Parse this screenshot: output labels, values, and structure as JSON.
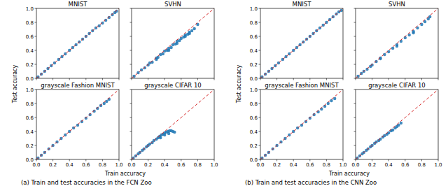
{
  "subfigures": [
    {
      "caption": "(a) Train and test accuracies in the FCN Zoo",
      "x_label": "Train accuracy",
      "y_label": "Test accuracy"
    },
    {
      "caption": "(b) Train and test accuracies in the CNN Zoo",
      "x_label": "Train accuracy",
      "y_label": "Test accuracy"
    }
  ],
  "chart_data": [
    {
      "type": "scatter",
      "title": "MNIST",
      "tick_labels": "y",
      "xlim": [
        0,
        1
      ],
      "ylim": [
        0,
        1
      ],
      "xticks": [
        {
          "value": 0,
          "label": "0.0"
        },
        0.2,
        0.4,
        0.6,
        0.8,
        {
          "value": 1,
          "label": "1.0"
        }
      ],
      "yticks": [
        {
          "value": 0,
          "label": "0.0"
        },
        0.2,
        0.4,
        0.6,
        0.8,
        {
          "value": 1,
          "label": "1.0"
        }
      ],
      "series": [
        {
          "type": "scatter",
          "color": "#1f77b4",
          "marker": "circle",
          "x": [
            0.02,
            0.06,
            0.1,
            0.14,
            0.18,
            0.22,
            0.27,
            0.31,
            0.35,
            0.4,
            0.44,
            0.48,
            0.52,
            0.56,
            0.6,
            0.64,
            0.68,
            0.72,
            0.76,
            0.8,
            0.84,
            0.88,
            0.92,
            0.95,
            0.97
          ],
          "y": [
            0.02,
            0.06,
            0.1,
            0.14,
            0.18,
            0.22,
            0.27,
            0.31,
            0.35,
            0.4,
            0.44,
            0.48,
            0.52,
            0.56,
            0.6,
            0.64,
            0.68,
            0.72,
            0.75,
            0.79,
            0.83,
            0.87,
            0.91,
            0.94,
            0.96
          ]
        },
        {
          "type": "line",
          "color": "#d62728",
          "line_style": "dashed",
          "x": [
            0,
            1
          ],
          "y": [
            0,
            1
          ]
        }
      ]
    },
    {
      "type": "scatter",
      "title": "SVHN",
      "tick_labels": false,
      "xlim": [
        0,
        1
      ],
      "ylim": [
        0,
        1
      ],
      "xticks": [
        {
          "value": 0,
          "label": "0.0"
        },
        0.2,
        0.4,
        0.6,
        0.8,
        {
          "value": 1,
          "label": "1.0"
        }
      ],
      "yticks": [
        {
          "value": 0,
          "label": "0.0"
        },
        0.2,
        0.4,
        0.6,
        0.8,
        {
          "value": 1,
          "label": "1.0"
        }
      ],
      "series": [
        {
          "type": "scatter",
          "color": "#1f77b4",
          "marker": "circle",
          "x": [
            0.03,
            0.08,
            0.12,
            0.16,
            0.2,
            0.22,
            0.25,
            0.3,
            0.32,
            0.35,
            0.38,
            0.4,
            0.43,
            0.45,
            0.48,
            0.5,
            0.53,
            0.55,
            0.58,
            0.6,
            0.63,
            0.65,
            0.68,
            0.7,
            0.73,
            0.76,
            0.8,
            0.3,
            0.45,
            0.55,
            0.65,
            0.7
          ],
          "y": [
            0.03,
            0.08,
            0.12,
            0.15,
            0.19,
            0.22,
            0.23,
            0.29,
            0.3,
            0.34,
            0.35,
            0.39,
            0.4,
            0.43,
            0.44,
            0.48,
            0.49,
            0.53,
            0.54,
            0.57,
            0.59,
            0.62,
            0.63,
            0.66,
            0.68,
            0.71,
            0.77,
            0.27,
            0.4,
            0.5,
            0.6,
            0.64
          ]
        },
        {
          "type": "line",
          "color": "#d62728",
          "line_style": "dashed",
          "x": [
            0,
            1
          ],
          "y": [
            0,
            1
          ]
        }
      ]
    },
    {
      "type": "scatter",
      "title": "grayscale Fashion MNIST",
      "xlim": [
        0,
        1
      ],
      "ylim": [
        0,
        1
      ],
      "xticks": [
        {
          "value": 0,
          "label": "0.0"
        },
        0.2,
        0.4,
        0.6,
        0.8,
        {
          "value": 1,
          "label": "1.0"
        }
      ],
      "yticks": [
        {
          "value": 0,
          "label": "0.0"
        },
        0.2,
        0.4,
        0.6,
        0.8,
        {
          "value": 1,
          "label": "1.0"
        }
      ],
      "series": [
        {
          "type": "scatter",
          "color": "#1f77b4",
          "marker": "circle",
          "x": [
            0.02,
            0.06,
            0.1,
            0.15,
            0.2,
            0.25,
            0.3,
            0.35,
            0.4,
            0.45,
            0.5,
            0.55,
            0.6,
            0.65,
            0.7,
            0.74,
            0.78,
            0.82,
            0.85,
            0.88
          ],
          "y": [
            0.02,
            0.06,
            0.1,
            0.15,
            0.2,
            0.25,
            0.3,
            0.35,
            0.4,
            0.45,
            0.49,
            0.54,
            0.59,
            0.64,
            0.69,
            0.73,
            0.77,
            0.8,
            0.83,
            0.86
          ]
        },
        {
          "type": "line",
          "color": "#d62728",
          "line_style": "dashed",
          "x": [
            0,
            1
          ],
          "y": [
            0,
            1
          ]
        }
      ]
    },
    {
      "type": "scatter",
      "title": "grayscale CIFAR 10",
      "tick_labels": "x",
      "xlim": [
        0,
        1
      ],
      "ylim": [
        0,
        1
      ],
      "xticks": [
        {
          "value": 0,
          "label": "0.0"
        },
        0.2,
        0.4,
        0.6,
        0.8,
        {
          "value": 1,
          "label": "1.0"
        }
      ],
      "yticks": [
        {
          "value": 0,
          "label": "0.0"
        },
        0.2,
        0.4,
        0.6,
        0.8,
        {
          "value": 1,
          "label": "1.0"
        }
      ],
      "series": [
        {
          "type": "scatter",
          "color": "#1f77b4",
          "marker": "circle",
          "x": [
            0.02,
            0.05,
            0.08,
            0.1,
            0.13,
            0.15,
            0.18,
            0.2,
            0.22,
            0.25,
            0.27,
            0.3,
            0.32,
            0.34,
            0.36,
            0.38,
            0.4,
            0.42,
            0.44,
            0.46,
            0.48,
            0.5,
            0.52,
            0.35,
            0.4,
            0.45
          ],
          "y": [
            0.02,
            0.05,
            0.08,
            0.1,
            0.13,
            0.15,
            0.18,
            0.2,
            0.22,
            0.24,
            0.27,
            0.29,
            0.31,
            0.33,
            0.35,
            0.36,
            0.38,
            0.39,
            0.4,
            0.41,
            0.41,
            0.4,
            0.39,
            0.31,
            0.35,
            0.37
          ]
        },
        {
          "type": "line",
          "color": "#d62728",
          "line_style": "dashed",
          "x": [
            0,
            1
          ],
          "y": [
            0,
            1
          ]
        }
      ]
    },
    {
      "type": "scatter",
      "title": "MNIST",
      "tick_labels": "y",
      "xlim": [
        0,
        1
      ],
      "ylim": [
        0,
        1
      ],
      "xticks": [
        {
          "value": 0,
          "label": "0.0"
        },
        0.2,
        0.4,
        0.6,
        0.8,
        {
          "value": 1,
          "label": "1.0"
        }
      ],
      "yticks": [
        {
          "value": 0,
          "label": "0.0"
        },
        0.2,
        0.4,
        0.6,
        0.8,
        {
          "value": 1,
          "label": "1.0"
        }
      ],
      "series": [
        {
          "type": "scatter",
          "color": "#1f77b4",
          "marker": "circle",
          "x": [
            0.02,
            0.06,
            0.1,
            0.14,
            0.18,
            0.22,
            0.27,
            0.31,
            0.35,
            0.4,
            0.44,
            0.48,
            0.52,
            0.56,
            0.6,
            0.64,
            0.68,
            0.72,
            0.76,
            0.8,
            0.84,
            0.88,
            0.92,
            0.95,
            0.98
          ],
          "y": [
            0.02,
            0.06,
            0.1,
            0.14,
            0.18,
            0.22,
            0.27,
            0.31,
            0.35,
            0.4,
            0.44,
            0.48,
            0.52,
            0.56,
            0.6,
            0.64,
            0.68,
            0.72,
            0.76,
            0.8,
            0.84,
            0.88,
            0.92,
            0.95,
            0.97
          ]
        },
        {
          "type": "line",
          "color": "#d62728",
          "line_style": "dashed",
          "x": [
            0,
            1
          ],
          "y": [
            0,
            1
          ]
        }
      ]
    },
    {
      "type": "scatter",
      "title": "SVHN",
      "tick_labels": false,
      "xlim": [
        0,
        1
      ],
      "ylim": [
        0,
        1
      ],
      "xticks": [
        {
          "value": 0,
          "label": "0.0"
        },
        0.2,
        0.4,
        0.6,
        0.8,
        {
          "value": 1,
          "label": "1.0"
        }
      ],
      "yticks": [
        {
          "value": 0,
          "label": "0.0"
        },
        0.2,
        0.4,
        0.6,
        0.8,
        {
          "value": 1,
          "label": "1.0"
        }
      ],
      "series": [
        {
          "type": "scatter",
          "color": "#1f77b4",
          "marker": "circle",
          "x": [
            0.03,
            0.07,
            0.1,
            0.14,
            0.18,
            0.2,
            0.25,
            0.3,
            0.35,
            0.4,
            0.45,
            0.5,
            0.55,
            0.6,
            0.65,
            0.7,
            0.75,
            0.8,
            0.84,
            0.88,
            0.9,
            0.3,
            0.5,
            0.7
          ],
          "y": [
            0.03,
            0.07,
            0.1,
            0.13,
            0.17,
            0.19,
            0.24,
            0.29,
            0.34,
            0.38,
            0.43,
            0.48,
            0.53,
            0.58,
            0.62,
            0.67,
            0.72,
            0.77,
            0.81,
            0.85,
            0.88,
            0.28,
            0.46,
            0.65
          ]
        },
        {
          "type": "line",
          "color": "#d62728",
          "line_style": "dashed",
          "x": [
            0,
            1
          ],
          "y": [
            0,
            1
          ]
        }
      ]
    },
    {
      "type": "scatter",
      "title": "grayscale Fashion MNIST",
      "xlim": [
        0,
        1
      ],
      "ylim": [
        0,
        1
      ],
      "xticks": [
        {
          "value": 0,
          "label": "0.0"
        },
        0.2,
        0.4,
        0.6,
        0.8,
        {
          "value": 1,
          "label": "1.0"
        }
      ],
      "yticks": [
        {
          "value": 0,
          "label": "0.0"
        },
        0.2,
        0.4,
        0.6,
        0.8,
        {
          "value": 1,
          "label": "1.0"
        }
      ],
      "series": [
        {
          "type": "scatter",
          "color": "#1f77b4",
          "marker": "circle",
          "x": [
            0.02,
            0.06,
            0.1,
            0.15,
            0.2,
            0.25,
            0.3,
            0.35,
            0.4,
            0.45,
            0.5,
            0.55,
            0.6,
            0.65,
            0.7,
            0.74,
            0.78,
            0.82,
            0.86,
            0.9
          ],
          "y": [
            0.02,
            0.06,
            0.1,
            0.15,
            0.2,
            0.25,
            0.3,
            0.35,
            0.4,
            0.45,
            0.49,
            0.54,
            0.59,
            0.64,
            0.68,
            0.72,
            0.76,
            0.8,
            0.84,
            0.87
          ]
        },
        {
          "type": "line",
          "color": "#d62728",
          "line_style": "dashed",
          "x": [
            0,
            1
          ],
          "y": [
            0,
            1
          ]
        }
      ]
    },
    {
      "type": "scatter",
      "title": "grayscale CIFAR 10",
      "tick_labels": "x",
      "xlim": [
        0,
        1
      ],
      "ylim": [
        0,
        1
      ],
      "xticks": [
        {
          "value": 0,
          "label": "0.0"
        },
        0.2,
        0.4,
        0.6,
        0.8,
        {
          "value": 1,
          "label": "1.0"
        }
      ],
      "yticks": [
        {
          "value": 0,
          "label": "0.0"
        },
        0.2,
        0.4,
        0.6,
        0.8,
        {
          "value": 1,
          "label": "1.0"
        }
      ],
      "series": [
        {
          "type": "scatter",
          "color": "#1f77b4",
          "marker": "circle",
          "x": [
            0.02,
            0.05,
            0.08,
            0.1,
            0.13,
            0.15,
            0.18,
            0.2,
            0.23,
            0.25,
            0.28,
            0.3,
            0.33,
            0.35,
            0.38,
            0.4,
            0.43,
            0.45,
            0.48,
            0.5,
            0.52,
            0.55
          ],
          "y": [
            0.02,
            0.05,
            0.08,
            0.1,
            0.13,
            0.15,
            0.18,
            0.2,
            0.23,
            0.25,
            0.27,
            0.29,
            0.32,
            0.34,
            0.36,
            0.38,
            0.41,
            0.42,
            0.45,
            0.47,
            0.49,
            0.52
          ]
        },
        {
          "type": "line",
          "color": "#d62728",
          "line_style": "dashed",
          "x": [
            0,
            1
          ],
          "y": [
            0,
            1
          ]
        }
      ]
    }
  ]
}
